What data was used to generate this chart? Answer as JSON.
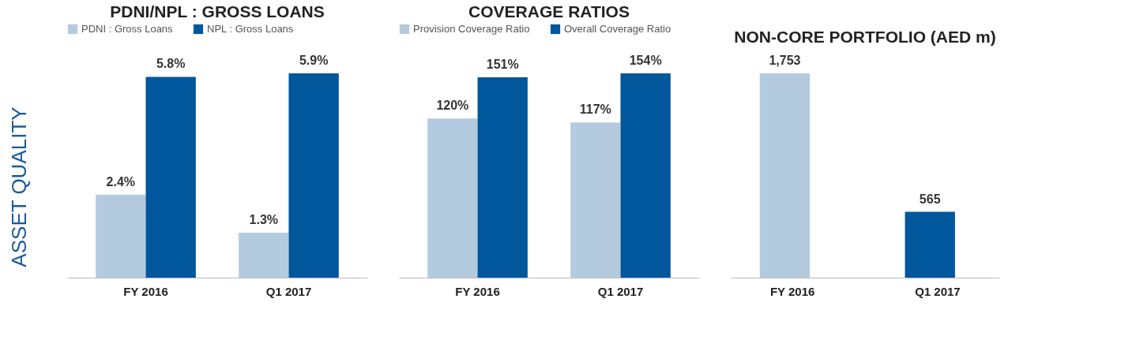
{
  "chart_data": [
    {
      "type": "bar",
      "title": "PDNI/NPL : GROSS LOANS",
      "categories": [
        "FY 2016",
        "Q1 2017"
      ],
      "legend": "top",
      "annotations": [
        "ASSET QUALITY"
      ],
      "series": [
        {
          "name": "PDNI : Gross Loans",
          "color": "#b4cbdf",
          "values": [
            2.4,
            1.3
          ],
          "value_labels": [
            "2.4%",
            "1.3%"
          ]
        },
        {
          "name": "NPL : Gross Loans",
          "color": "#00579b",
          "values": [
            5.8,
            5.9
          ],
          "value_labels": [
            "5.8%",
            "5.9%"
          ]
        }
      ]
    },
    {
      "type": "bar",
      "title": "COVERAGE RATIOS",
      "categories": [
        "FY 2016",
        "Q1 2017"
      ],
      "legend": "top",
      "series": [
        {
          "name": "Provision Coverage Ratio",
          "color": "#b4cbdf",
          "values": [
            120,
            117
          ],
          "value_labels": [
            "120%",
            "117%"
          ]
        },
        {
          "name": "Overall Coverage Ratio",
          "color": "#00579b",
          "values": [
            151,
            154
          ],
          "value_labels": [
            "151%",
            "154%"
          ]
        }
      ]
    },
    {
      "type": "bar",
      "title": "NON-CORE PORTFOLIO (AED m)",
      "categories": [
        "FY 2016",
        "Q1 2017"
      ],
      "legend": false,
      "values": [
        1753,
        565
      ],
      "colors": [
        "#b4cbdf",
        "#00579b"
      ],
      "value_labels": [
        "1,753",
        "565"
      ]
    }
  ]
}
